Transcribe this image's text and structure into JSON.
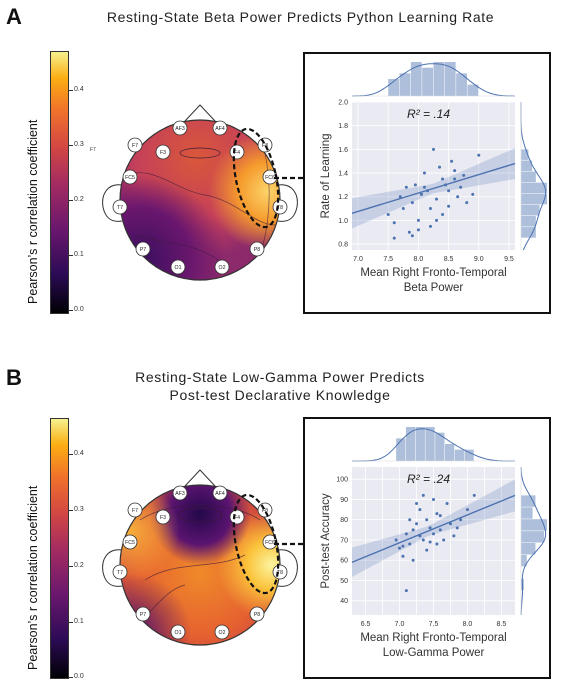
{
  "panels": [
    {
      "letter": "A",
      "title_lines": [
        "Resting-State Beta Power Predicts Python Learning Rate"
      ],
      "colorbar_label": "Pearson’s r correlation coefficient",
      "colorbar_ticks": [
        "0.4",
        "0.3",
        "0.2",
        "0.1",
        "0.0"
      ],
      "electrodes": [
        "AF3",
        "AF4",
        "F7",
        "F3",
        "F4",
        "F8",
        "FC5",
        "FC6",
        "T7",
        "T8",
        "P7",
        "P8",
        "O1",
        "O2"
      ],
      "stray_label": "F7",
      "inset": {
        "r2_text": "R² = .14",
        "xlabel_lines": [
          "Mean Right Fronto-Temporal",
          "Beta Power"
        ],
        "ylabel": "Rate of Learning"
      }
    },
    {
      "letter": "B",
      "title_lines": [
        "Resting-State Low-Gamma Power Predicts",
        "Post-test Declarative Knowledge"
      ],
      "colorbar_label": "Pearson’s r correlation coefficient",
      "colorbar_ticks": [
        "0.4",
        "0.3",
        "0.2",
        "0.1",
        "0.0"
      ],
      "electrodes": [
        "AF3",
        "AF4",
        "F7",
        "F3",
        "F4",
        "F8",
        "FC5",
        "FC6",
        "T7",
        "T8",
        "P7",
        "P8",
        "O1",
        "O2"
      ],
      "stray_label": "",
      "inset": {
        "r2_text": "R² = .24",
        "xlabel_lines": [
          "Mean Right Fronto-Temporal",
          "Low-Gamma Power"
        ],
        "ylabel": "Post-test Accuracy"
      }
    }
  ],
  "chart_data": [
    {
      "type": "scatter",
      "title": "",
      "xlabel": "Mean Right Fronto-Temporal Beta Power",
      "ylabel": "Rate of Learning",
      "xlim": [
        6.9,
        9.6
      ],
      "ylim": [
        0.75,
        2.0
      ],
      "x_ticks": [
        7.0,
        7.5,
        8.0,
        8.5,
        9.0,
        9.5
      ],
      "y_ticks": [
        0.8,
        1.0,
        1.2,
        1.4,
        1.6,
        1.8,
        2.0
      ],
      "x_tick_labels": [
        "7.0",
        "7.5",
        "8.0",
        "8.5",
        "9.0",
        "9.5"
      ],
      "y_tick_labels": [
        "0.8",
        "1.0",
        "1.2",
        "1.4",
        "1.6",
        "1.8",
        "2.0"
      ],
      "annotation": "R² = .14",
      "regression": {
        "x": [
          6.9,
          9.6
        ],
        "y": [
          1.06,
          1.48
        ]
      },
      "points": [
        [
          7.5,
          1.05
        ],
        [
          7.6,
          0.98
        ],
        [
          7.7,
          1.2
        ],
        [
          7.75,
          1.1
        ],
        [
          7.8,
          1.28
        ],
        [
          7.85,
          0.9
        ],
        [
          7.9,
          1.15
        ],
        [
          7.95,
          1.3
        ],
        [
          8.0,
          1.0
        ],
        [
          8.05,
          1.22
        ],
        [
          8.1,
          1.4
        ],
        [
          8.15,
          1.25
        ],
        [
          8.2,
          0.95
        ],
        [
          8.25,
          1.6
        ],
        [
          8.3,
          1.18
        ],
        [
          8.35,
          1.45
        ],
        [
          8.4,
          1.05
        ],
        [
          8.45,
          1.3
        ],
        [
          8.5,
          1.25
        ],
        [
          8.55,
          1.5
        ],
        [
          8.6,
          1.35
        ],
        [
          8.65,
          1.2
        ],
        [
          8.7,
          1.28
        ],
        [
          8.75,
          1.38
        ],
        [
          8.8,
          1.15
        ],
        [
          8.9,
          1.22
        ],
        [
          8.2,
          1.1
        ],
        [
          8.4,
          1.35
        ],
        [
          8.0,
          0.92
        ],
        [
          7.6,
          0.85
        ],
        [
          8.6,
          1.42
        ],
        [
          8.3,
          1.0
        ],
        [
          9.0,
          1.55
        ],
        [
          8.1,
          1.28
        ],
        [
          7.9,
          0.87
        ],
        [
          8.5,
          1.12
        ]
      ]
    },
    {
      "type": "scatter",
      "title": "",
      "xlabel": "Mean Right Fronto-Temporal Low-Gamma Power",
      "ylabel": "Post-test Accuracy",
      "xlim": [
        6.3,
        8.7
      ],
      "ylim": [
        33,
        106
      ],
      "x_ticks": [
        6.5,
        6.75,
        7.0,
        7.25,
        7.5,
        7.75,
        8.0,
        8.25,
        8.5
      ],
      "y_ticks": [
        40,
        50,
        60,
        70,
        80,
        90,
        100
      ],
      "x_tick_labels": [
        "6.5",
        "",
        "7.0",
        "",
        "7.5",
        "",
        "8.0",
        "",
        "8.5"
      ],
      "y_tick_labels": [
        "40",
        "50",
        "60",
        "70",
        "80",
        "90",
        "100"
      ],
      "annotation": "R² = .24",
      "regression": {
        "x": [
          6.3,
          8.7
        ],
        "y": [
          59,
          92
        ]
      },
      "points": [
        [
          6.95,
          70
        ],
        [
          7.0,
          66
        ],
        [
          7.05,
          62
        ],
        [
          7.1,
          73
        ],
        [
          7.1,
          45
        ],
        [
          7.15,
          68
        ],
        [
          7.2,
          75
        ],
        [
          7.2,
          60
        ],
        [
          7.25,
          78
        ],
        [
          7.3,
          72
        ],
        [
          7.3,
          85
        ],
        [
          7.35,
          70
        ],
        [
          7.4,
          80
        ],
        [
          7.4,
          65
        ],
        [
          7.45,
          76
        ],
        [
          7.5,
          90
        ],
        [
          7.5,
          73
        ],
        [
          7.55,
          68
        ],
        [
          7.6,
          82
        ],
        [
          7.6,
          75
        ],
        [
          7.65,
          70
        ],
        [
          7.7,
          88
        ],
        [
          7.75,
          78
        ],
        [
          7.8,
          72
        ],
        [
          7.9,
          80
        ],
        [
          8.0,
          85
        ],
        [
          8.1,
          92
        ],
        [
          7.25,
          88
        ],
        [
          7.35,
          92
        ],
        [
          7.15,
          80
        ],
        [
          7.45,
          69
        ],
        [
          7.05,
          67
        ],
        [
          7.55,
          83
        ],
        [
          7.85,
          76
        ]
      ]
    }
  ]
}
